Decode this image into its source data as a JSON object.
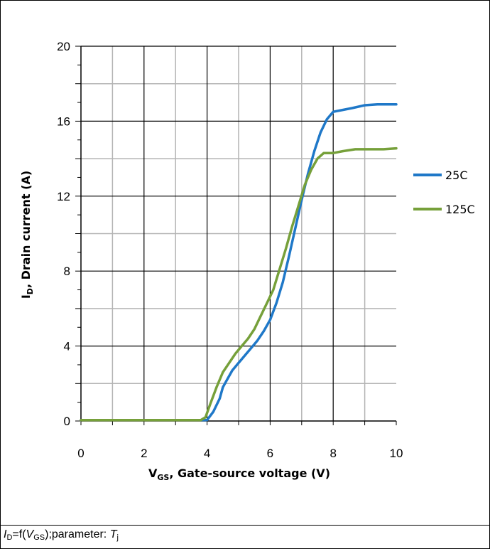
{
  "chart_data": {
    "type": "line",
    "xlabel_main": "V",
    "xlabel_sub": "GS",
    "xlabel_rest": ", Gate-source voltage (V)",
    "ylabel_main": "I",
    "ylabel_sub": "D",
    "ylabel_rest": ", Drain current (A)",
    "xlim": [
      0,
      10
    ],
    "ylim": [
      0,
      20
    ],
    "x_ticks": [
      "0",
      "2",
      "4",
      "6",
      "8",
      "10"
    ],
    "y_ticks": [
      "0",
      "4",
      "8",
      "12",
      "16",
      "20"
    ],
    "grid": true,
    "legend_position": "right",
    "series": [
      {
        "name": "25C",
        "color": "#1f78c8",
        "points": [
          [
            0,
            0.05
          ],
          [
            1,
            0.05
          ],
          [
            2,
            0.05
          ],
          [
            3,
            0.05
          ],
          [
            3.8,
            0.05
          ],
          [
            4.0,
            0.05
          ],
          [
            4.2,
            0.5
          ],
          [
            4.4,
            1.2
          ],
          [
            4.5,
            1.8
          ],
          [
            4.6,
            2.1
          ],
          [
            4.8,
            2.7
          ],
          [
            5.0,
            3.1
          ],
          [
            5.2,
            3.5
          ],
          [
            5.4,
            3.9
          ],
          [
            5.6,
            4.3
          ],
          [
            5.8,
            4.8
          ],
          [
            6.0,
            5.4
          ],
          [
            6.2,
            6.3
          ],
          [
            6.4,
            7.4
          ],
          [
            6.6,
            8.8
          ],
          [
            6.8,
            10.3
          ],
          [
            7.0,
            11.8
          ],
          [
            7.2,
            13.2
          ],
          [
            7.4,
            14.4
          ],
          [
            7.6,
            15.4
          ],
          [
            7.8,
            16.1
          ],
          [
            8.0,
            16.5
          ],
          [
            8.3,
            16.6
          ],
          [
            8.6,
            16.7
          ],
          [
            9.0,
            16.85
          ],
          [
            9.4,
            16.9
          ],
          [
            9.7,
            16.9
          ],
          [
            10,
            16.9
          ]
        ]
      },
      {
        "name": "125C",
        "color": "#76a03a",
        "points": [
          [
            0,
            0.05
          ],
          [
            1,
            0.05
          ],
          [
            2,
            0.05
          ],
          [
            3,
            0.05
          ],
          [
            3.8,
            0.05
          ],
          [
            3.95,
            0.2
          ],
          [
            4.1,
            0.9
          ],
          [
            4.3,
            1.8
          ],
          [
            4.5,
            2.6
          ],
          [
            4.7,
            3.1
          ],
          [
            4.9,
            3.6
          ],
          [
            5.1,
            4.0
          ],
          [
            5.3,
            4.4
          ],
          [
            5.5,
            4.9
          ],
          [
            5.7,
            5.6
          ],
          [
            5.9,
            6.3
          ],
          [
            6.1,
            7.0
          ],
          [
            6.3,
            8.1
          ],
          [
            6.5,
            9.2
          ],
          [
            6.7,
            10.4
          ],
          [
            6.9,
            11.5
          ],
          [
            7.1,
            12.6
          ],
          [
            7.3,
            13.4
          ],
          [
            7.5,
            14.0
          ],
          [
            7.7,
            14.3
          ],
          [
            8.0,
            14.3
          ],
          [
            8.3,
            14.4
          ],
          [
            8.7,
            14.5
          ],
          [
            9.2,
            14.5
          ],
          [
            9.6,
            14.5
          ],
          [
            10,
            14.55
          ]
        ]
      }
    ]
  },
  "caption": {
    "i_main": "I",
    "i_sub": "D",
    "mid": "=f(",
    "v_main": "V",
    "v_sub": "GS",
    "tail": ");parameter: ",
    "t_main": "T",
    "t_sub": "j"
  }
}
